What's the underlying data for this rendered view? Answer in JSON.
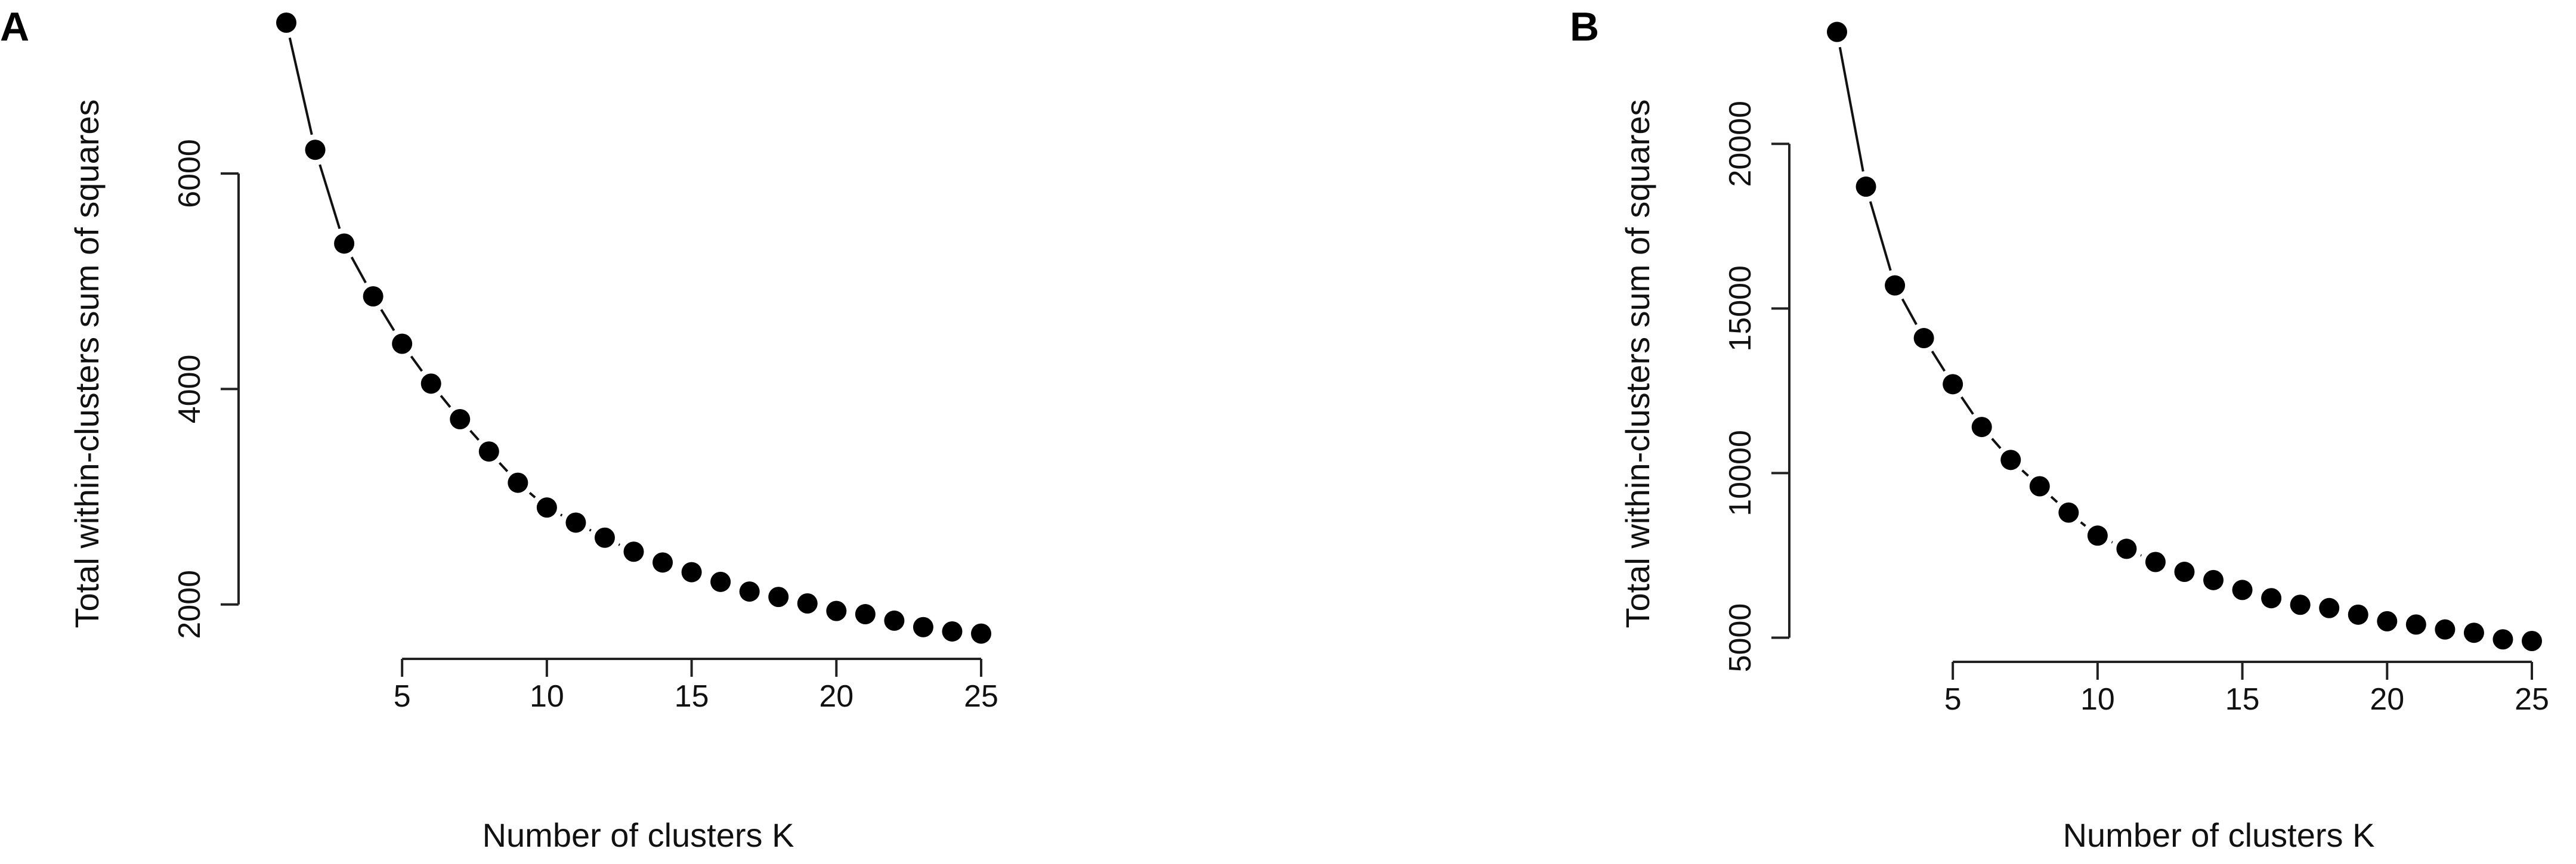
{
  "chart_data": [
    {
      "panel_label": "A",
      "type": "line",
      "xlabel": "Number of clusters K",
      "ylabel": "Total within-clusters sum of squares",
      "x_ticks": [
        5,
        10,
        15,
        20,
        25
      ],
      "y_ticks": [
        2000,
        4000,
        6000
      ],
      "xlim": [
        1,
        25
      ],
      "ylim": [
        1700,
        7400
      ],
      "grid": false,
      "series": [
        {
          "x": [
            1,
            2,
            3,
            4,
            5,
            6,
            7,
            8,
            9,
            10,
            11,
            12,
            13,
            14,
            15,
            16,
            17,
            18,
            19,
            20,
            21,
            22,
            23,
            24,
            25
          ],
          "y": [
            7400,
            6220,
            5350,
            4860,
            4420,
            4050,
            3720,
            3420,
            3130,
            2900,
            2760,
            2620,
            2490,
            2390,
            2300,
            2210,
            2120,
            2070,
            2010,
            1940,
            1910,
            1850,
            1790,
            1750,
            1730
          ]
        }
      ]
    },
    {
      "panel_label": "B",
      "type": "line",
      "xlabel": "Number of clusters K",
      "ylabel": "Total within-clusters sum of squares",
      "x_ticks": [
        5,
        10,
        15,
        20,
        25
      ],
      "y_ticks": [
        5000,
        10000,
        15000,
        20000
      ],
      "xlim": [
        1,
        25
      ],
      "ylim": [
        4900,
        23500
      ],
      "grid": false,
      "series": [
        {
          "x": [
            1,
            2,
            3,
            4,
            5,
            6,
            7,
            8,
            9,
            10,
            11,
            12,
            13,
            14,
            15,
            16,
            17,
            18,
            19,
            20,
            21,
            22,
            23,
            24,
            25
          ],
          "y": [
            23400,
            18700,
            15700,
            14100,
            12700,
            11400,
            10400,
            9600,
            8800,
            8100,
            7700,
            7300,
            7000,
            6750,
            6450,
            6200,
            6000,
            5900,
            5700,
            5500,
            5400,
            5250,
            5150,
            4950,
            4900
          ]
        }
      ]
    }
  ]
}
